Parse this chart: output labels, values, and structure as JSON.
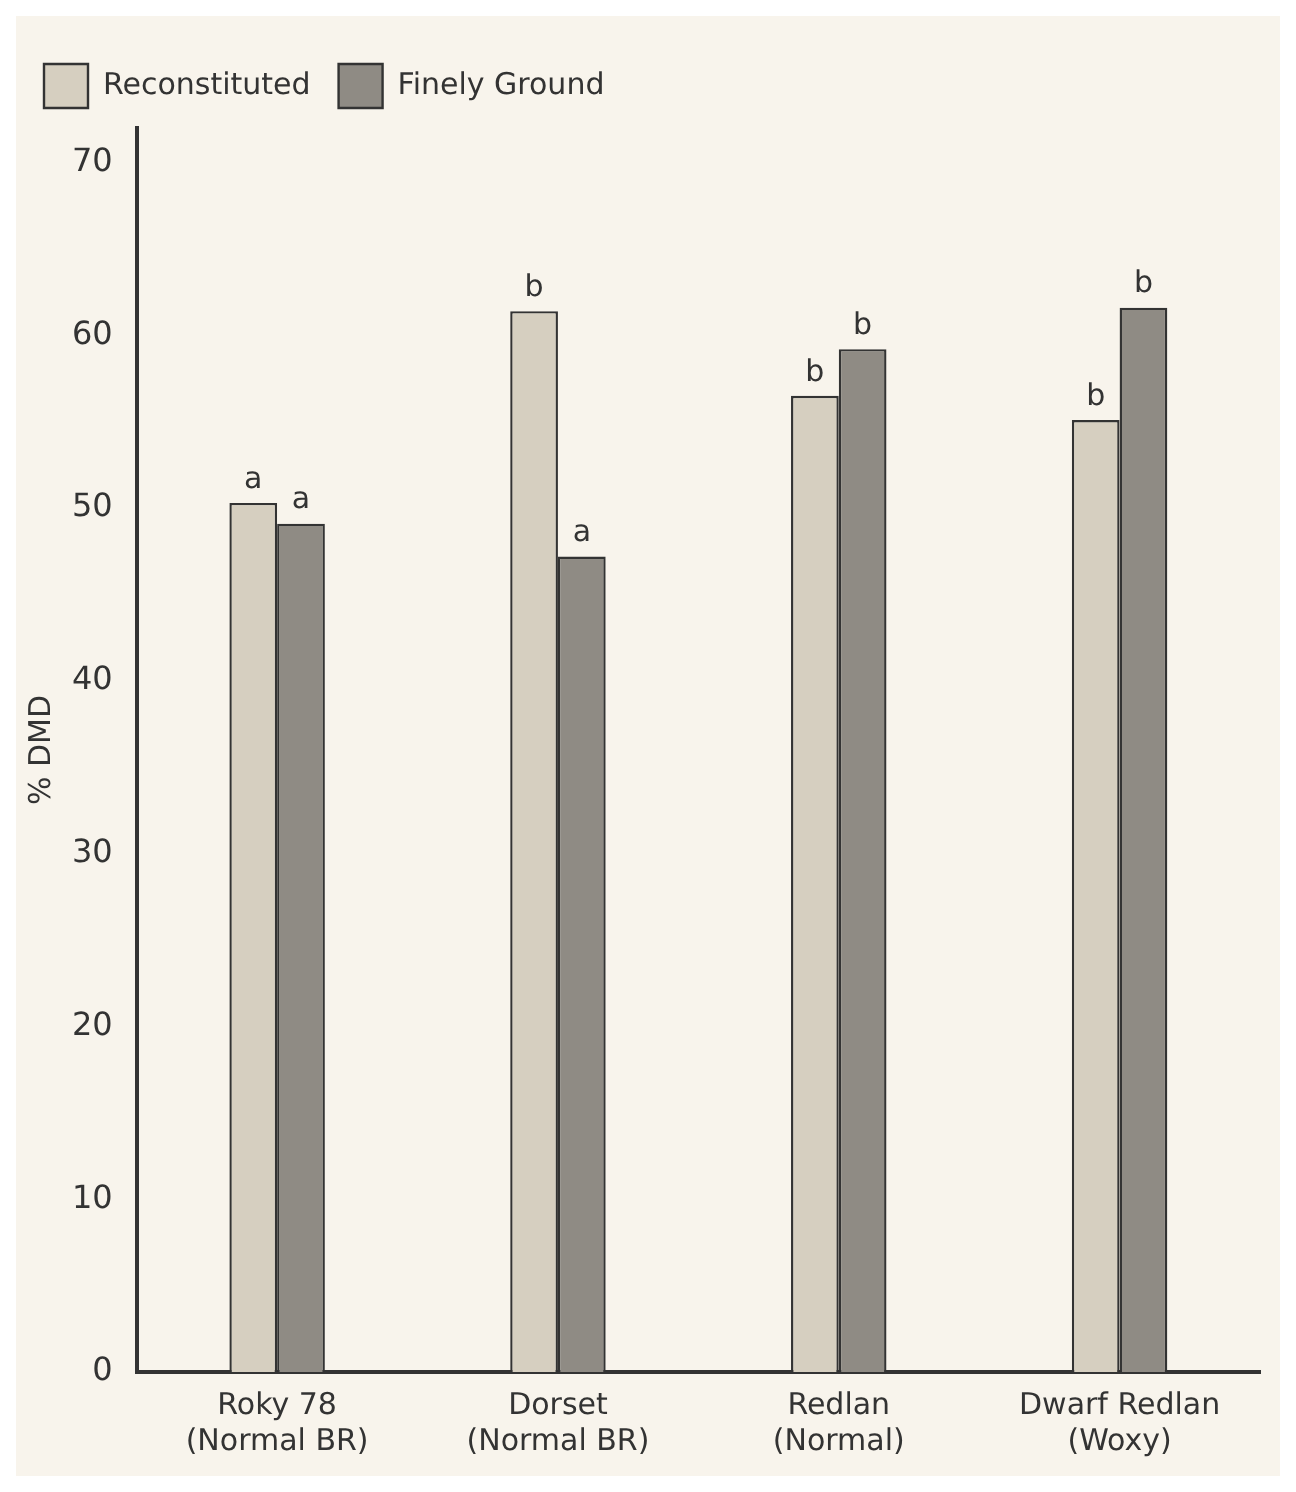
{
  "chart_data": {
    "type": "bar",
    "ylabel": "% DMD",
    "categories": [
      "Roky 78 (Normal BR)",
      "Dorset (Normal BR)",
      "Redlan (Normal)",
      "Dwarf Redlan (Woxy)"
    ],
    "series": [
      {
        "name": "Reconstituted",
        "color": "#d6cfc0",
        "values": [
          50.3,
          61.4,
          56.5,
          55.1
        ],
        "value_labels": [
          "a",
          "b",
          "b",
          "b"
        ]
      },
      {
        "name": "Finely Ground",
        "color": "#8f8b84",
        "values": [
          49.1,
          47.2,
          59.2,
          61.6
        ],
        "value_labels": [
          "a",
          "a",
          "b",
          "b"
        ]
      }
    ],
    "ylim": [
      0,
      72
    ],
    "yticks": [
      0,
      10,
      20,
      30,
      40,
      50,
      60,
      70
    ],
    "grid": false,
    "legend": "top left"
  }
}
